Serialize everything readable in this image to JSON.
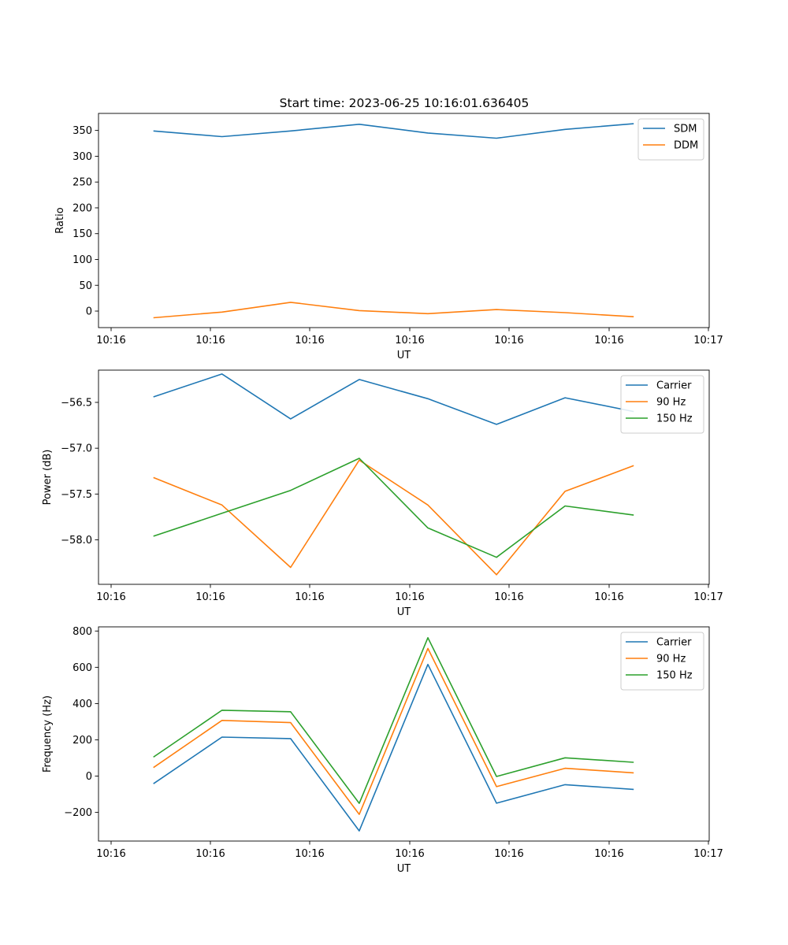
{
  "figure": {
    "suptitle": "Start time: 2023-06-25 10:16:01.636405"
  },
  "chart_data": [
    {
      "type": "line",
      "title": "Start time: 2023-06-25 10:16:01.636405",
      "xlabel": "UT",
      "ylabel": "Ratio",
      "x_tick_labels": [
        "10:16",
        "10:16",
        "10:16",
        "10:16",
        "10:16",
        "10:16",
        "10:17"
      ],
      "y_ticks": [
        0,
        50,
        100,
        150,
        200,
        250,
        300,
        350
      ],
      "ylim": [
        -32,
        383
      ],
      "x": [
        1,
        2,
        3,
        4,
        5,
        6,
        7,
        8
      ],
      "xlim": [
        0.2,
        9.1
      ],
      "legend_position": "upper right",
      "series": [
        {
          "name": "SDM",
          "color": "#1f77b4",
          "values": [
            349,
            338,
            349,
            362,
            345,
            335,
            352,
            363
          ]
        },
        {
          "name": "DDM",
          "color": "#ff7f0e",
          "values": [
            -13,
            -2,
            17,
            1,
            -5,
            3,
            -3,
            -11
          ]
        }
      ]
    },
    {
      "type": "line",
      "title": "",
      "xlabel": "UT",
      "ylabel": "Power (dB)",
      "x_tick_labels": [
        "10:16",
        "10:16",
        "10:16",
        "10:16",
        "10:16",
        "10:16",
        "10:17"
      ],
      "y_ticks": [
        -58.0,
        -57.5,
        -57.0,
        -56.5
      ],
      "y_tick_labels": [
        "−58.0",
        "−57.5",
        "−57.0",
        "−56.5"
      ],
      "ylim": [
        -58.485,
        -56.148
      ],
      "x": [
        1,
        2,
        3,
        4,
        5,
        6,
        7,
        8
      ],
      "xlim": [
        0.2,
        9.1
      ],
      "legend_position": "upper right",
      "series": [
        {
          "name": "Carrier",
          "color": "#1f77b4",
          "values": [
            -56.44,
            -56.19,
            -56.68,
            -56.25,
            -56.46,
            -56.74,
            -56.45,
            -56.6
          ]
        },
        {
          "name": "90 Hz",
          "color": "#ff7f0e",
          "values": [
            -57.32,
            -57.62,
            -58.3,
            -57.13,
            -57.62,
            -58.38,
            -57.47,
            -57.19
          ]
        },
        {
          "name": "150 Hz",
          "color": "#2ca02c",
          "values": [
            -57.96,
            -57.71,
            -57.46,
            -57.11,
            -57.87,
            -58.19,
            -57.63,
            -57.73
          ]
        }
      ]
    },
    {
      "type": "line",
      "title": "",
      "xlabel": "UT",
      "ylabel": "Frequency (Hz)",
      "x_tick_labels": [
        "10:16",
        "10:16",
        "10:16",
        "10:16",
        "10:16",
        "10:16",
        "10:17"
      ],
      "y_ticks": [
        -200,
        0,
        200,
        400,
        600,
        800
      ],
      "y_tick_labels": [
        "−200",
        "0",
        "200",
        "400",
        "600",
        "800"
      ],
      "ylim": [
        -358,
        823
      ],
      "x": [
        1,
        2,
        3,
        4,
        5,
        6,
        7,
        8
      ],
      "xlim": [
        0.2,
        9.1
      ],
      "legend_position": "upper right",
      "series": [
        {
          "name": "Carrier",
          "color": "#1f77b4",
          "values": [
            -42,
            215,
            207,
            -302,
            616,
            -149,
            -47,
            -73
          ]
        },
        {
          "name": "90 Hz",
          "color": "#ff7f0e",
          "values": [
            47,
            307,
            295,
            -211,
            704,
            -58,
            43,
            18
          ]
        },
        {
          "name": "150 Hz",
          "color": "#2ca02c",
          "values": [
            105,
            363,
            355,
            -150,
            763,
            -2,
            101,
            76
          ]
        }
      ]
    }
  ]
}
